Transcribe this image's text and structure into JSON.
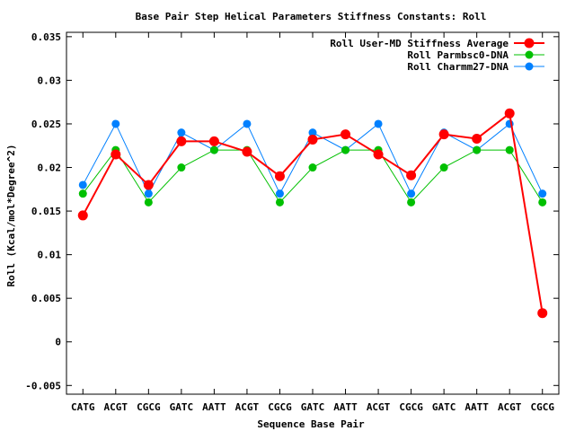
{
  "chart_data": {
    "type": "line",
    "title": "Base Pair Step Helical Parameters Stiffness Constants: Roll",
    "xlabel": "Sequence Base Pair",
    "ylabel": "Roll (Kcal/mol*Degree^2)",
    "ylim": [
      -0.006,
      0.0355
    ],
    "yticks": [
      -0.005,
      0,
      0.005,
      0.01,
      0.015,
      0.02,
      0.025,
      0.03,
      0.035
    ],
    "ytick_labels": [
      "-0.005",
      "0",
      "0.005",
      "0.01",
      "0.015",
      "0.02",
      "0.025",
      "0.03",
      "0.035"
    ],
    "categories": [
      "CATG",
      "ACGT",
      "CGCG",
      "GATC",
      "AATT",
      "ACGT",
      "CGCG",
      "GATC",
      "AATT",
      "ACGT",
      "CGCG",
      "GATC",
      "AATT",
      "ACGT",
      "CGCG"
    ],
    "grid": false,
    "legend_position": "top-right",
    "series": [
      {
        "name": "Roll User-MD Stiffness Average",
        "color": "#ff0000",
        "values": [
          0.0145,
          0.0215,
          0.018,
          0.023,
          0.023,
          0.0218,
          0.019,
          0.0232,
          0.0238,
          0.0215,
          0.0191,
          0.0238,
          0.0233,
          0.0262,
          0.0033
        ]
      },
      {
        "name": "Roll Parmbsc0-DNA",
        "color": "#00c000",
        "values": [
          0.017,
          0.022,
          0.016,
          0.02,
          0.022,
          0.022,
          0.016,
          0.02,
          0.022,
          0.022,
          0.016,
          0.02,
          0.022,
          0.022,
          0.016
        ]
      },
      {
        "name": "Roll Charmm27-DNA",
        "color": "#0080ff",
        "values": [
          0.018,
          0.025,
          0.017,
          0.024,
          0.022,
          0.025,
          0.017,
          0.024,
          0.022,
          0.025,
          0.017,
          0.024,
          0.022,
          0.025,
          0.017
        ]
      }
    ]
  }
}
